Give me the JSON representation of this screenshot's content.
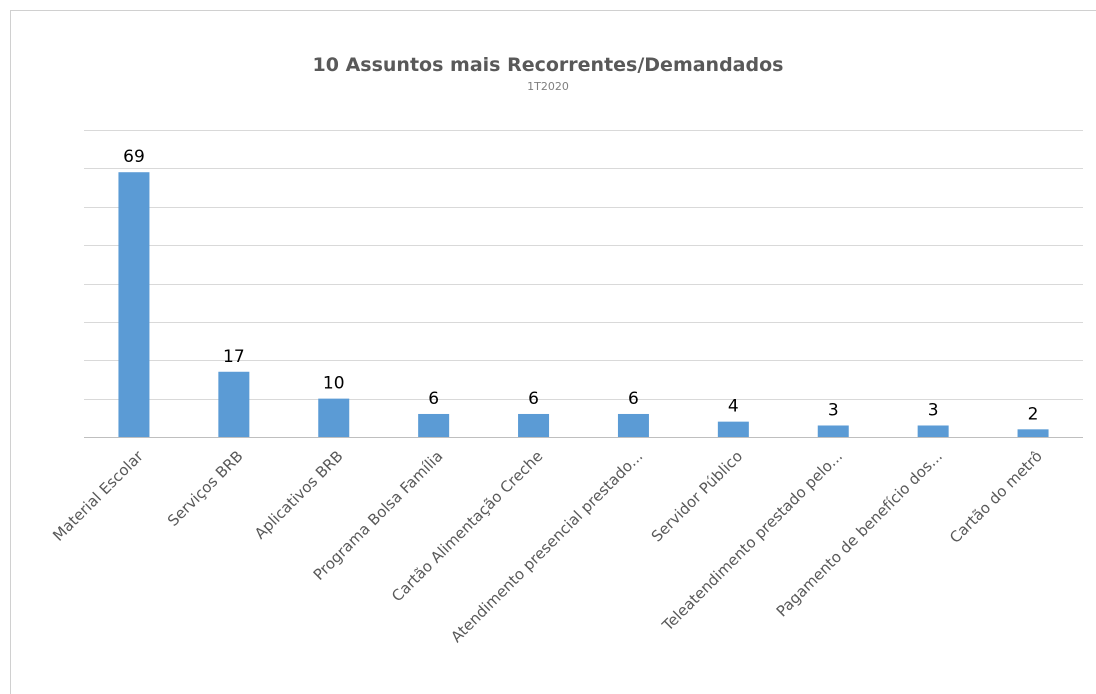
{
  "chart_data": {
    "type": "bar",
    "title": "10 Assuntos mais Recorrentes/Demandados",
    "subtitle": "1T2020",
    "categories": [
      "Material Escolar",
      "Serviços BRB",
      "Aplicativos BRB",
      "Programa Bolsa Família",
      "Cartão Alimentação Creche",
      "Atendimento presencial prestado...",
      "Servidor Público",
      "Teleatendimento prestado pelo...",
      "Pagamento de benefício dos...",
      "Cartão do metrô"
    ],
    "values": [
      69,
      17,
      10,
      6,
      6,
      6,
      4,
      3,
      3,
      2
    ],
    "data_labels": [
      "69",
      "17",
      "10",
      "6",
      "6",
      "6",
      "4",
      "3",
      "3",
      "2"
    ],
    "ylim": [
      0,
      80
    ],
    "grid": true,
    "legend": "none",
    "colors": {
      "bar": "#5b9bd5"
    }
  }
}
